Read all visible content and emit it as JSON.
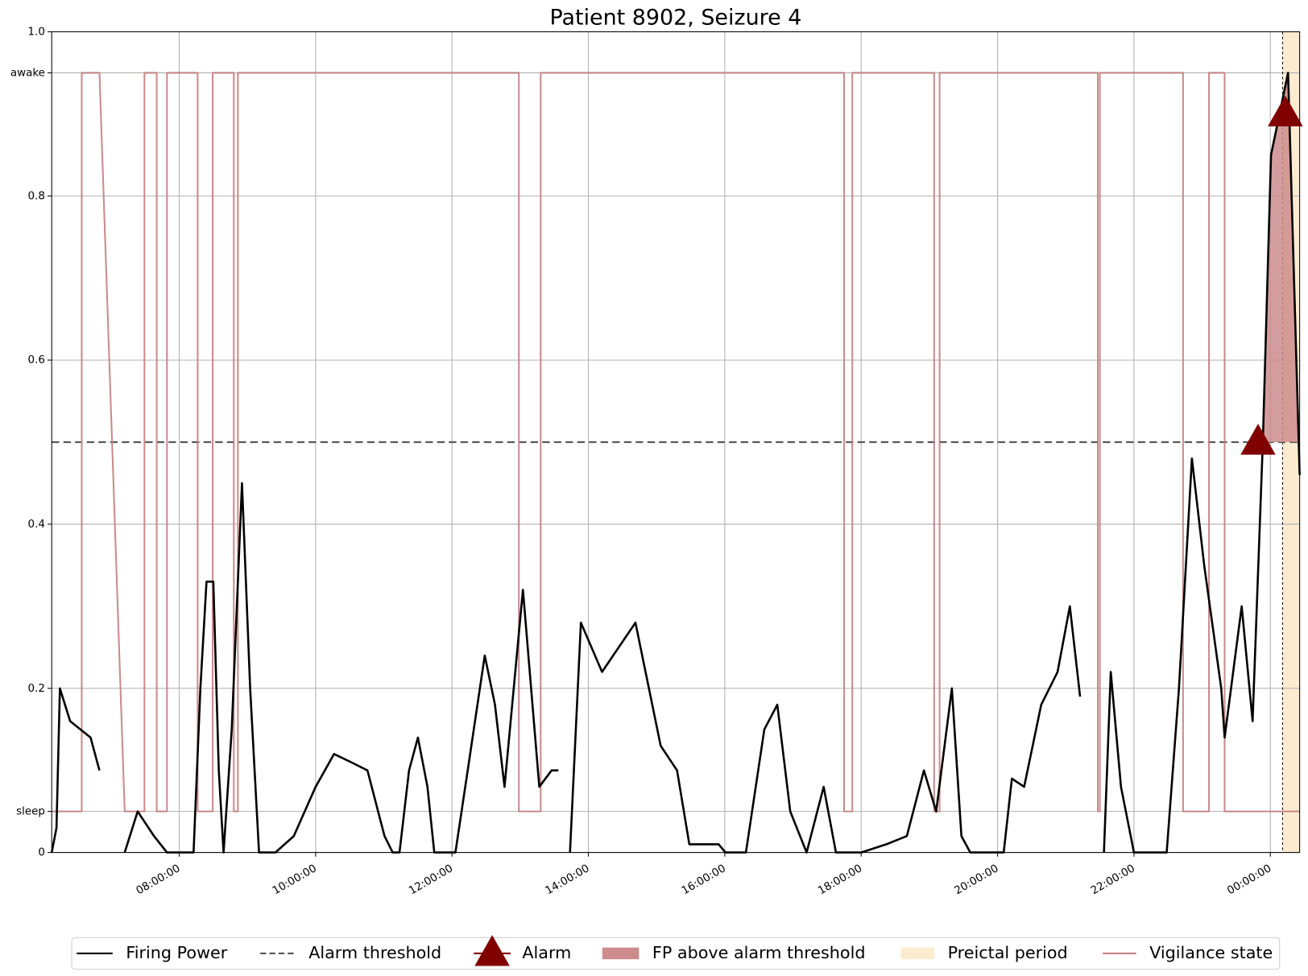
{
  "chart_data": {
    "type": "line",
    "title": "Patient 8902, Seizure 4",
    "xlim": [
      6.13,
      24.43
    ],
    "xticks": [
      {
        "value": 8,
        "label": "08:00:00"
      },
      {
        "value": 10,
        "label": "10:00:00"
      },
      {
        "value": 12,
        "label": "12:00:00"
      },
      {
        "value": 14,
        "label": "14:00:00"
      },
      {
        "value": 16,
        "label": "16:00:00"
      },
      {
        "value": 18,
        "label": "18:00:00"
      },
      {
        "value": 20,
        "label": "20:00:00"
      },
      {
        "value": 22,
        "label": "22:00:00"
      },
      {
        "value": 24,
        "label": "00:00:00"
      }
    ],
    "ylim": [
      0,
      1
    ],
    "yticks": [
      0,
      {
        "value": 0.05,
        "label": "sleep"
      },
      0.2,
      0.4,
      0.6,
      0.8,
      {
        "value": 0.95,
        "label": "awake"
      },
      {
        "value": 1,
        "label": "1.0"
      }
    ],
    "grid": true,
    "series": [
      {
        "name": "Firing Power",
        "color": "#000000",
        "x": [
          6.13,
          6.2,
          6.25,
          6.4,
          6.55,
          6.7,
          6.83,
          7.0,
          7.2,
          7.39,
          7.63,
          7.82,
          8.21,
          8.31,
          8.4,
          8.5,
          8.58,
          8.65,
          8.77,
          8.92,
          9.04,
          9.17,
          9.41,
          9.68,
          10.0,
          10.27,
          10.52,
          10.76,
          11.01,
          11.13,
          11.23,
          11.37,
          11.5,
          11.64,
          11.74,
          12.05,
          12.23,
          12.48,
          12.63,
          12.77,
          13.04,
          13.28,
          13.46,
          13.56,
          13.65,
          13.73,
          13.89,
          14.2,
          14.69,
          15.06,
          15.3,
          15.48,
          15.91,
          16.01,
          16.31,
          16.58,
          16.77,
          16.96,
          17.2,
          17.45,
          17.63,
          18.0,
          18.37,
          18.67,
          18.92,
          19.1,
          19.33,
          19.47,
          19.6,
          20.09,
          20.21,
          20.39,
          20.64,
          20.88,
          21.06,
          21.21,
          21.4,
          21.56,
          21.66,
          21.81,
          22.0,
          22.48,
          22.66,
          22.85,
          23.03,
          23.28,
          23.33,
          23.58,
          23.74,
          23.89,
          24.01,
          24.26,
          24.43
        ],
        "values": [
          0,
          0.03,
          0.2,
          0.16,
          0.15,
          0.14,
          0.1,
          null,
          0,
          0.05,
          0.02,
          0,
          0,
          0.2,
          0.33,
          0.33,
          0.1,
          0,
          0.15,
          0.45,
          0.2,
          0,
          0,
          0.02,
          0.08,
          0.12,
          0.11,
          0.1,
          0.02,
          0,
          0,
          0.1,
          0.14,
          0.08,
          0,
          0,
          0.1,
          0.24,
          0.18,
          0.08,
          0.32,
          0.08,
          0.1,
          0.1,
          null,
          0,
          0.28,
          0.22,
          0.28,
          0.13,
          0.1,
          0.01,
          0.01,
          0,
          0,
          0.15,
          0.18,
          0.05,
          0,
          0.08,
          0,
          0,
          0.01,
          0.02,
          0.1,
          0.05,
          0.2,
          0.02,
          0,
          0,
          0.09,
          0.08,
          0.18,
          0.22,
          0.3,
          0.19,
          null,
          0,
          0.22,
          0.08,
          0,
          0,
          0.2,
          0.48,
          0.35,
          0.2,
          0.14,
          0.3,
          0.16,
          0.5,
          0.85,
          0.95,
          0.46
        ]
      },
      {
        "name": "Vigilance state",
        "color": "#c47f7f",
        "x": [
          6.13,
          6.57,
          6.57,
          6.83,
          7.2,
          7.49,
          7.49,
          7.67,
          7.67,
          7.82,
          7.82,
          8.27,
          8.27,
          8.49,
          8.49,
          8.8,
          8.8,
          8.86,
          8.86,
          12.98,
          12.98,
          13.3,
          13.3,
          17.75,
          17.75,
          17.87,
          17.87,
          19.07,
          19.07,
          19.15,
          19.15,
          21.47,
          21.47,
          21.5,
          21.5,
          22.72,
          22.72,
          23.1,
          23.1,
          23.33,
          23.33,
          24.43
        ],
        "values": [
          0.05,
          0.05,
          0.95,
          0.95,
          0.05,
          0.05,
          0.95,
          0.95,
          0.05,
          0.05,
          0.95,
          0.95,
          0.05,
          0.05,
          0.95,
          0.95,
          0.05,
          0.05,
          0.95,
          0.95,
          0.05,
          0.05,
          0.95,
          0.95,
          0.05,
          0.05,
          0.95,
          0.95,
          0.05,
          0.05,
          0.95,
          0.95,
          0.05,
          0.05,
          0.95,
          0.95,
          0.05,
          0.05,
          0.95,
          0.95,
          0.05,
          0.05
        ]
      }
    ],
    "threshold": {
      "name": "Alarm threshold",
      "value": 0.5,
      "color": "#555555"
    },
    "alarms": {
      "name": "Alarm",
      "color": "#800000",
      "x": [
        23.82,
        24.22
      ],
      "values": [
        0.5,
        0.9
      ]
    },
    "fp_above": {
      "name": "FP above alarm threshold",
      "color": "#cd8c8c"
    },
    "preictal": {
      "name": "Preictal period",
      "color": "#fdebd0",
      "x": [
        24.18,
        24.43
      ]
    }
  }
}
